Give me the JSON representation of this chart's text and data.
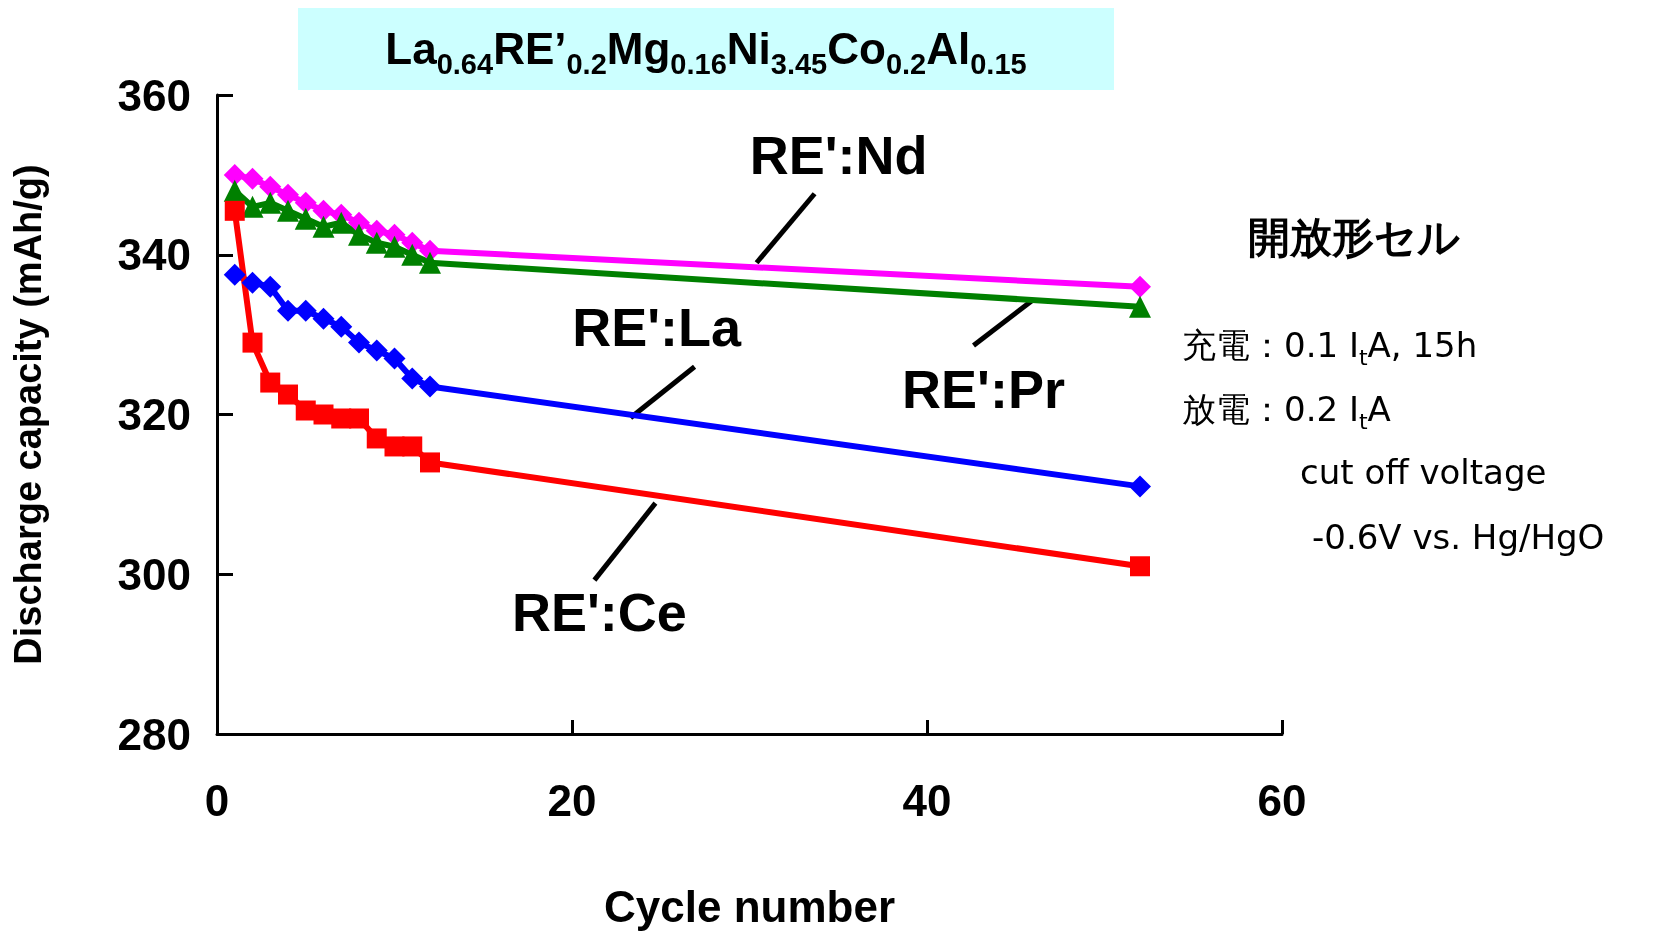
{
  "chart_data": {
    "type": "line",
    "title": "La$_{0.64}$RE’$_{0.2}$Mg$_{0.16}$Ni$_{3.45}$Co$_{0.2}$Al$_{0.15}$",
    "xlabel": "Cycle number",
    "ylabel": "Discharge capacity (mAh/g)",
    "x": [
      1,
      2,
      3,
      4,
      5,
      6,
      7,
      8,
      9,
      10,
      11,
      12,
      52
    ],
    "series": [
      {
        "color": "#ff00ff",
        "marker": "diamond",
        "values": [
          350,
          349.5,
          348.5,
          347.5,
          346.5,
          345.5,
          345,
          344,
          343,
          342.5,
          341.5,
          340.5,
          336
        ]
      },
      {
        "color": "#008000",
        "marker": "triangle",
        "values": [
          348,
          346,
          346.5,
          345.5,
          344.5,
          343.5,
          344,
          342.5,
          341.5,
          341,
          340,
          339,
          333.5
        ]
      },
      {
        "color": "#0000ff",
        "marker": "diamond",
        "values": [
          337.5,
          336.5,
          336,
          333,
          333,
          332,
          331,
          329,
          328,
          327,
          324.5,
          323.5,
          311
        ]
      },
      {
        "color": "#ff0000",
        "marker": "square",
        "values": [
          345.5,
          329,
          324,
          322.5,
          320.5,
          320,
          319.5,
          319.5,
          317,
          316,
          316,
          314,
          301
        ]
      }
    ],
    "xlim": [
      0,
      60
    ],
    "xticks": [
      0,
      20,
      40,
      60
    ],
    "ylim": [
      280,
      360
    ],
    "yticks": [
      280,
      300,
      320,
      340,
      360
    ],
    "line_style": "solid",
    "annotations": [
      {
        "text": "RE':Nd",
        "x": 30.4,
        "y": 339
      },
      {
        "text": "RE':Pr",
        "x": 46,
        "y": 334.4
      },
      {
        "text": "RE':La",
        "x": 23.3,
        "y": 319.6
      },
      {
        "text": "RE':Ce",
        "x": 24.7,
        "y": 308.9
      },
      "開放形セル",
      "充電：0.1 I$_{t}$A, 15h",
      "放電：0.2 I$_{t}$A",
      "cut off voltage",
      "-0.6V vs. Hg/HgO"
    ]
  }
}
